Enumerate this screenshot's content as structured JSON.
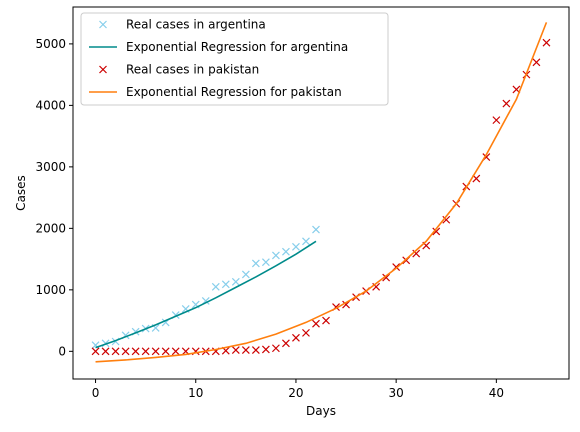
{
  "chart_data": {
    "type": "line",
    "xlabel": "Days",
    "ylabel": "Cases",
    "xlim": [
      -2.25,
      47.25
    ],
    "ylim": [
      -450,
      5600
    ],
    "xticks": [
      0,
      10,
      20,
      30,
      40
    ],
    "yticks": [
      0,
      1000,
      2000,
      3000,
      4000,
      5000
    ],
    "grid": false,
    "legend_position": "top-left",
    "series": [
      {
        "name": "Real cases in argentina",
        "kind": "scatter",
        "marker": "x",
        "color": "#87ceeb",
        "x": [
          0,
          1,
          2,
          3,
          4,
          5,
          6,
          7,
          8,
          9,
          10,
          11,
          12,
          13,
          14,
          15,
          16,
          17,
          18,
          19,
          20,
          21,
          22
        ],
        "y": [
          100,
          130,
          160,
          260,
          320,
          370,
          380,
          470,
          590,
          690,
          760,
          820,
          1050,
          1090,
          1130,
          1250,
          1430,
          1450,
          1560,
          1620,
          1700,
          1790,
          1980
        ]
      },
      {
        "name": "Exponential Regression for argentina",
        "kind": "line",
        "color": "#008b8b",
        "x": [
          0,
          2,
          4,
          6,
          8,
          10,
          12,
          14,
          16,
          18,
          20,
          22
        ],
        "y": [
          60,
          175,
          300,
          430,
          570,
          710,
          870,
          1040,
          1210,
          1390,
          1580,
          1790
        ]
      },
      {
        "name": "Real cases in pakistan",
        "kind": "scatter",
        "marker": "x",
        "color": "#cc0000",
        "x": [
          0,
          1,
          2,
          3,
          4,
          5,
          6,
          7,
          8,
          9,
          10,
          11,
          12,
          13,
          14,
          15,
          16,
          17,
          18,
          19,
          20,
          21,
          22,
          23,
          24,
          25,
          26,
          27,
          28,
          29,
          30,
          31,
          32,
          33,
          34,
          35,
          36,
          37,
          38,
          39,
          40,
          41,
          42,
          43,
          44,
          45
        ],
        "y": [
          0,
          0,
          0,
          0,
          0,
          0,
          0,
          0,
          0,
          0,
          0,
          0,
          0,
          10,
          20,
          20,
          20,
          30,
          50,
          130,
          220,
          300,
          450,
          500,
          720,
          760,
          880,
          980,
          1050,
          1200,
          1370,
          1480,
          1590,
          1720,
          1950,
          2140,
          2400,
          2680,
          2810,
          3160,
          3760,
          4030,
          4260,
          4500,
          4700,
          5020
        ]
      },
      {
        "name": "Exponential Regression for pakistan",
        "kind": "line",
        "color": "#ff7f0e",
        "x": [
          0,
          3,
          6,
          9,
          12,
          15,
          18,
          21,
          24,
          27,
          30,
          33,
          36,
          39,
          42,
          45
        ],
        "y": [
          -170,
          -140,
          -100,
          -50,
          30,
          130,
          280,
          470,
          700,
          980,
          1350,
          1790,
          2400,
          3200,
          4100,
          5350
        ]
      }
    ]
  }
}
